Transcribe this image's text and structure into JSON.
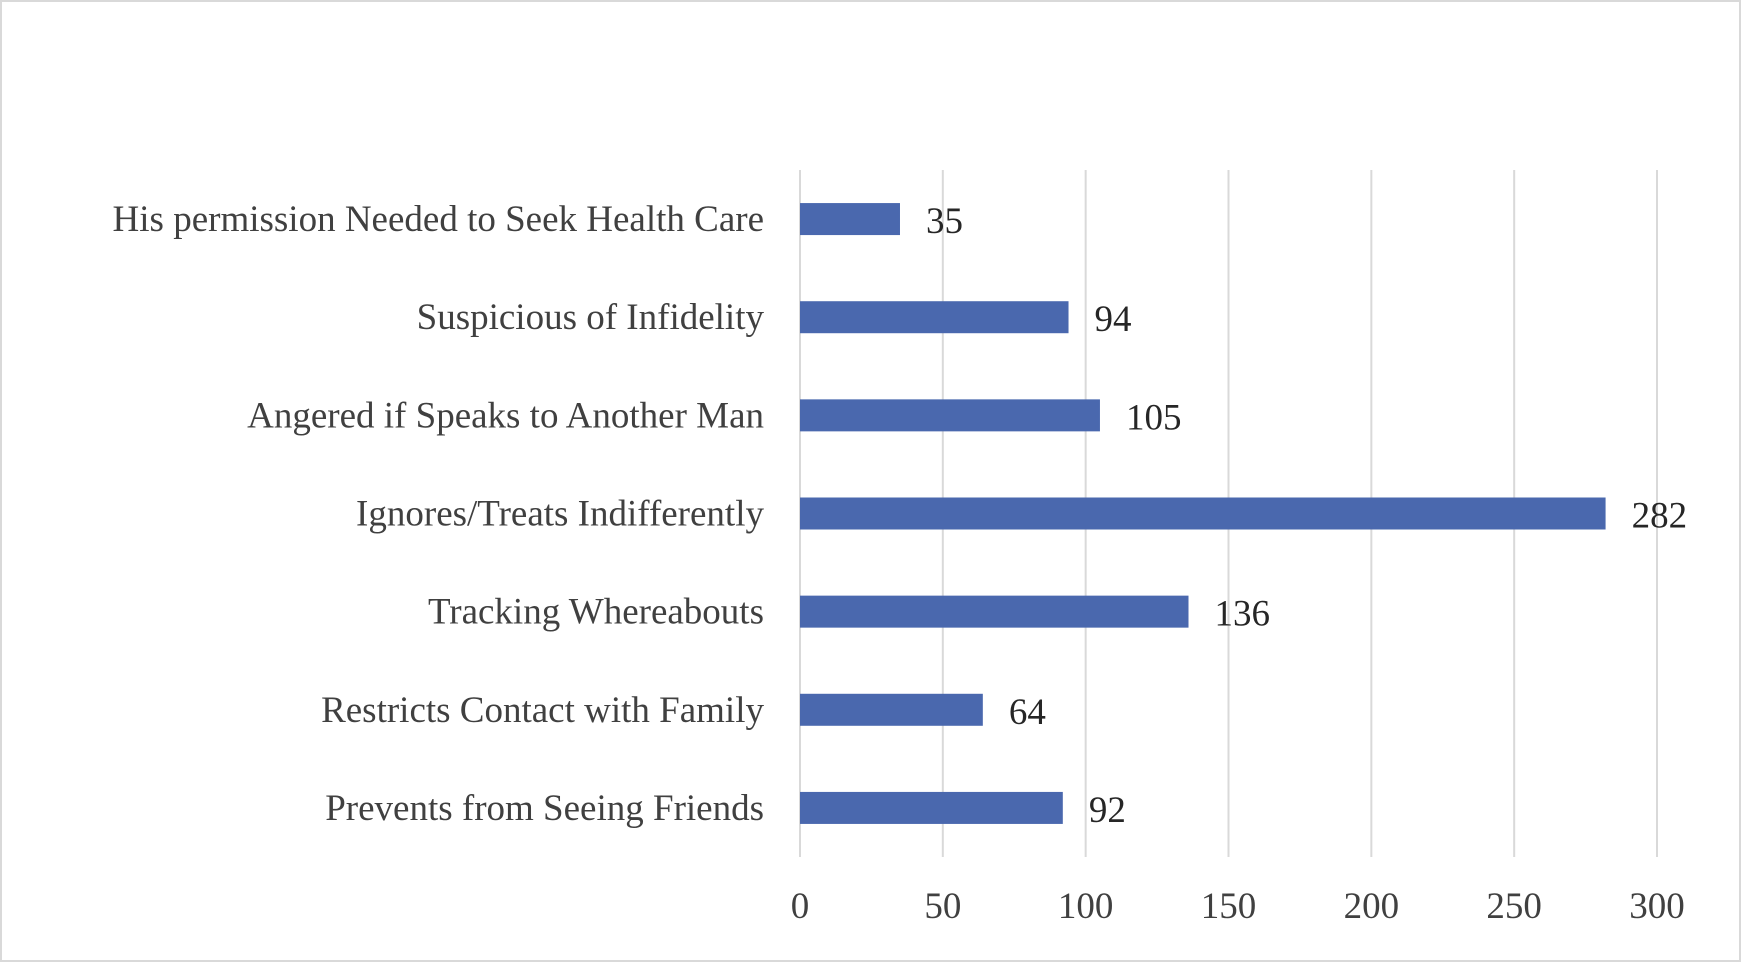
{
  "chart_data": {
    "type": "bar",
    "orientation": "horizontal",
    "categories": [
      "His permission Needed to Seek Health Care",
      "Suspicious of Infidelity",
      "Angered if Speaks to Another Man",
      "Ignores/Treats Indifferently",
      "Tracking Whereabouts",
      "Restricts Contact with Family",
      "Prevents from Seeing Friends"
    ],
    "values": [
      35,
      94,
      105,
      282,
      136,
      64,
      92
    ],
    "data_labels": [
      "35",
      "94",
      "105",
      "282",
      "136",
      "64",
      "92"
    ],
    "xlim": [
      0,
      300
    ],
    "x_ticks": [
      "0",
      "50",
      "100",
      "150",
      "200",
      "250",
      "300"
    ],
    "title": "",
    "xlabel": "",
    "ylabel": "",
    "grid": "vertical",
    "legend": "none",
    "bar_color": "#4a68ae",
    "grid_color": "#d9d9d9"
  }
}
